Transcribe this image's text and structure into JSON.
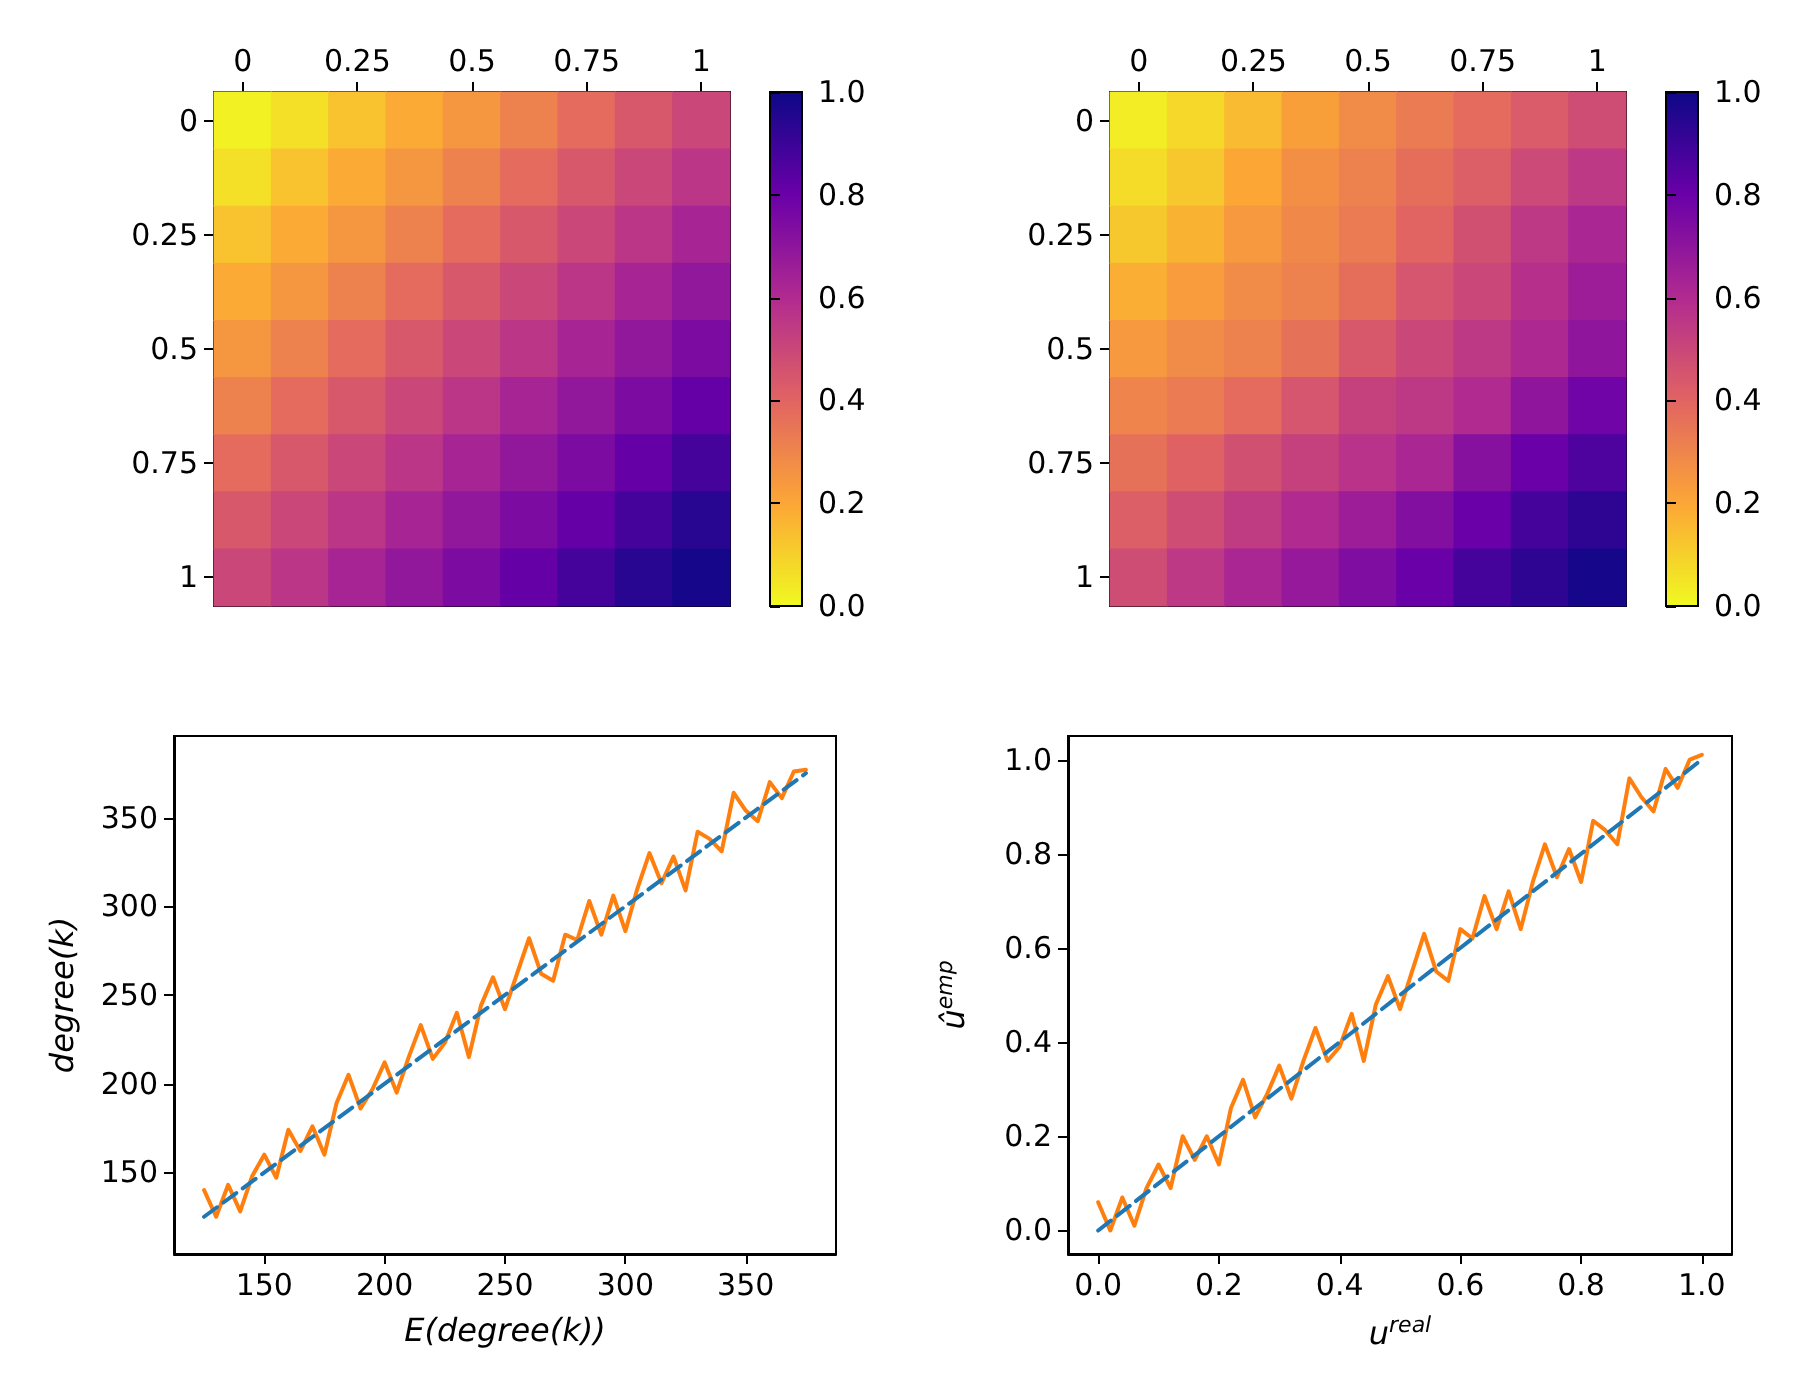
{
  "chart_data": [
    {
      "type": "heatmap",
      "categories": [
        "0",
        null,
        "0.25",
        null,
        "0.5",
        null,
        "0.75",
        null,
        "1"
      ],
      "y_categories": [
        "0",
        null,
        "0.25",
        null,
        "0.5",
        null,
        "0.75",
        null,
        "1"
      ],
      "cells": [
        [
          0.02,
          0.06,
          0.13,
          0.19,
          0.25,
          0.31,
          0.38,
          0.44,
          0.5
        ],
        [
          0.06,
          0.13,
          0.19,
          0.25,
          0.31,
          0.38,
          0.44,
          0.5,
          0.56
        ],
        [
          0.13,
          0.19,
          0.25,
          0.31,
          0.38,
          0.44,
          0.5,
          0.56,
          0.63
        ],
        [
          0.19,
          0.25,
          0.31,
          0.38,
          0.44,
          0.5,
          0.56,
          0.63,
          0.69
        ],
        [
          0.25,
          0.31,
          0.38,
          0.44,
          0.5,
          0.56,
          0.63,
          0.69,
          0.75
        ],
        [
          0.31,
          0.38,
          0.44,
          0.5,
          0.56,
          0.63,
          0.69,
          0.75,
          0.81
        ],
        [
          0.38,
          0.44,
          0.5,
          0.56,
          0.63,
          0.69,
          0.75,
          0.81,
          0.88
        ],
        [
          0.44,
          0.5,
          0.56,
          0.63,
          0.69,
          0.75,
          0.81,
          0.88,
          0.94
        ],
        [
          0.5,
          0.56,
          0.63,
          0.69,
          0.75,
          0.81,
          0.88,
          0.94,
          0.98
        ]
      ],
      "clim": [
        0,
        1
      ],
      "cticks": [
        {
          "value": 0,
          "label": "0.0"
        },
        {
          "value": 0.2,
          "label": "0.2"
        },
        {
          "value": 0.4,
          "label": "0.4"
        },
        {
          "value": 0.6,
          "label": "0.6"
        },
        {
          "value": 0.8,
          "label": "0.8"
        },
        {
          "value": 1,
          "label": "1.0"
        }
      ]
    },
    {
      "type": "heatmap",
      "categories": [
        "0",
        null,
        "0.25",
        null,
        "0.5",
        null,
        "0.75",
        null,
        "1"
      ],
      "y_categories": [
        "0",
        null,
        "0.25",
        null,
        "0.5",
        null,
        "0.75",
        null,
        "1"
      ],
      "cells": [
        [
          0.03,
          0.08,
          0.15,
          0.22,
          0.28,
          0.33,
          0.38,
          0.43,
          0.48
        ],
        [
          0.07,
          0.12,
          0.2,
          0.27,
          0.31,
          0.37,
          0.42,
          0.49,
          0.55
        ],
        [
          0.12,
          0.17,
          0.24,
          0.29,
          0.33,
          0.4,
          0.47,
          0.55,
          0.62
        ],
        [
          0.18,
          0.23,
          0.28,
          0.31,
          0.37,
          0.45,
          0.5,
          0.58,
          0.66
        ],
        [
          0.24,
          0.28,
          0.31,
          0.36,
          0.44,
          0.5,
          0.55,
          0.61,
          0.7
        ],
        [
          0.3,
          0.33,
          0.38,
          0.45,
          0.52,
          0.55,
          0.6,
          0.7,
          0.78
        ],
        [
          0.36,
          0.41,
          0.47,
          0.52,
          0.57,
          0.62,
          0.72,
          0.8,
          0.86
        ],
        [
          0.42,
          0.48,
          0.54,
          0.6,
          0.66,
          0.73,
          0.8,
          0.88,
          0.93
        ],
        [
          0.48,
          0.55,
          0.62,
          0.68,
          0.74,
          0.8,
          0.88,
          0.93,
          0.98
        ]
      ],
      "clim": [
        0,
        1
      ],
      "cticks": [
        {
          "value": 0,
          "label": "0.0"
        },
        {
          "value": 0.2,
          "label": "0.2"
        },
        {
          "value": 0.4,
          "label": "0.4"
        },
        {
          "value": 0.6,
          "label": "0.6"
        },
        {
          "value": 0.8,
          "label": "0.8"
        },
        {
          "value": 1,
          "label": "1.0"
        }
      ]
    },
    {
      "type": "line",
      "xlabel": "E(degree(k))",
      "ylabel": "degree(k)",
      "xlim": [
        112.5,
        387.5
      ],
      "ylim": [
        104,
        396
      ],
      "xticks": [
        150,
        200,
        250,
        300,
        350
      ],
      "yticks": [
        150,
        200,
        250,
        300,
        350
      ],
      "series": [
        {
          "color": "#ff7f0e",
          "x": [
            125,
            130,
            135,
            140,
            145,
            150,
            155,
            160,
            165,
            170,
            175,
            180,
            185,
            190,
            195,
            200,
            205,
            210,
            215,
            220,
            225,
            230,
            235,
            240,
            245,
            250,
            255,
            260,
            265,
            270,
            275,
            280,
            285,
            290,
            295,
            300,
            305,
            310,
            315,
            320,
            325,
            330,
            335,
            340,
            345,
            350,
            355,
            360,
            365,
            370,
            375
          ],
          "values": [
            140,
            125,
            143,
            128,
            148,
            160,
            147,
            174,
            162,
            176,
            160,
            189,
            205,
            186,
            197,
            212,
            195,
            215,
            233,
            214,
            223,
            240,
            215,
            244,
            260,
            242,
            262,
            282,
            262,
            258,
            284,
            281,
            303,
            284,
            306,
            286,
            310,
            330,
            313,
            328,
            309,
            342,
            338,
            331,
            364,
            354,
            348,
            370,
            361,
            376,
            377
          ]
        },
        {
          "color": "#1f77b4",
          "line_style": "dashed",
          "x": [
            125,
            375
          ],
          "values": [
            125,
            375
          ]
        }
      ]
    },
    {
      "type": "line",
      "xlabel": "u$^{real}$",
      "ylabel": "û$^{emp}$",
      "xlim": [
        -0.05,
        1.05
      ],
      "ylim": [
        -0.05,
        1.05
      ],
      "xticks": [
        {
          "value": 0,
          "label": "0.0"
        },
        {
          "value": 0.2,
          "label": "0.2"
        },
        {
          "value": 0.4,
          "label": "0.4"
        },
        {
          "value": 0.6,
          "label": "0.6"
        },
        {
          "value": 0.8,
          "label": "0.8"
        },
        {
          "value": 1,
          "label": "1.0"
        }
      ],
      "yticks": [
        {
          "value": 0,
          "label": "0.0"
        },
        {
          "value": 0.2,
          "label": "0.2"
        },
        {
          "value": 0.4,
          "label": "0.4"
        },
        {
          "value": 0.6,
          "label": "0.6"
        },
        {
          "value": 0.8,
          "label": "0.8"
        },
        {
          "value": 1,
          "label": "1.0"
        }
      ],
      "series": [
        {
          "color": "#ff7f0e",
          "x": [
            0,
            0.02,
            0.04,
            0.06,
            0.08,
            0.1,
            0.12,
            0.14,
            0.16,
            0.18,
            0.2,
            0.22,
            0.24,
            0.26,
            0.28,
            0.3,
            0.32,
            0.34,
            0.36,
            0.38,
            0.4,
            0.42,
            0.44,
            0.46,
            0.48,
            0.5,
            0.52,
            0.54,
            0.56,
            0.58,
            0.6,
            0.62,
            0.64,
            0.66,
            0.68,
            0.7,
            0.72,
            0.74,
            0.76,
            0.78,
            0.8,
            0.82,
            0.84,
            0.86,
            0.88,
            0.9,
            0.92,
            0.94,
            0.96,
            0.98,
            1
          ],
          "values": [
            0.06,
            0.0,
            0.07,
            0.01,
            0.09,
            0.14,
            0.09,
            0.2,
            0.15,
            0.2,
            0.14,
            0.26,
            0.32,
            0.24,
            0.29,
            0.35,
            0.28,
            0.36,
            0.43,
            0.36,
            0.39,
            0.46,
            0.36,
            0.48,
            0.54,
            0.47,
            0.55,
            0.63,
            0.55,
            0.53,
            0.64,
            0.62,
            0.71,
            0.64,
            0.72,
            0.64,
            0.74,
            0.82,
            0.75,
            0.81,
            0.74,
            0.87,
            0.85,
            0.82,
            0.96,
            0.92,
            0.89,
            0.98,
            0.94,
            1.0,
            1.01
          ]
        },
        {
          "color": "#1f77b4",
          "line_style": "dashed",
          "x": [
            0,
            1
          ],
          "values": [
            0,
            1
          ]
        }
      ]
    }
  ]
}
